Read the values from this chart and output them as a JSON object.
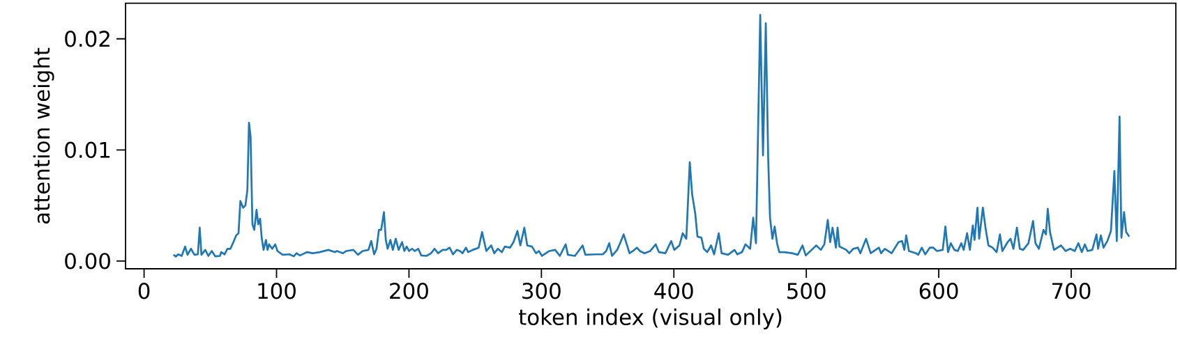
{
  "chart_data": {
    "type": "line",
    "xlabel": "token index (visual only)",
    "ylabel": "attention weight",
    "color": "#1f77b4",
    "xlim": [
      -14,
      779
    ],
    "ylim": [
      -0.0007,
      0.0232
    ],
    "xticks": [
      0,
      100,
      200,
      300,
      400,
      500,
      600,
      700
    ],
    "yticks": [
      {
        "value": 0,
        "label": "0.00"
      },
      {
        "value": 0.01,
        "label": "0.01"
      },
      {
        "value": 0.02,
        "label": "0.02"
      }
    ],
    "x": [
      22.2,
      24,
      25.7,
      28.4,
      31,
      32.8,
      35.4,
      38,
      40.6,
      42,
      43.3,
      46.2,
      48.5,
      51.1,
      53.8,
      57.3,
      58.2,
      60.8,
      62.9,
      65.2,
      67.8,
      69.5,
      71.3,
      72.7,
      74.8,
      76.5,
      78,
      79.2,
      80.4,
      81.8,
      83.2,
      84.9,
      86.2,
      87.6,
      88.8,
      90.2,
      92,
      93.2,
      94.4,
      96.7,
      99,
      100.7,
      104.6,
      109.8,
      113,
      115.1,
      117.7,
      123,
      127.3,
      132.6,
      139.1,
      144,
      145.7,
      150.1,
      152.7,
      158,
      161.5,
      165,
      169.4,
      171.5,
      173.7,
      175.5,
      177.3,
      179,
      181.1,
      182.5,
      183.9,
      186,
      187.8,
      190,
      192.2,
      194.8,
      196.5,
      198.3,
      200,
      202.3,
      204.4,
      207,
      209.3,
      213.2,
      216.7,
      219.3,
      222,
      225.4,
      228.1,
      230.7,
      233.3,
      236,
      238.6,
      240.4,
      243,
      244.7,
      248.2,
      252.6,
      255.2,
      258.4,
      262.1,
      264.4,
      267.1,
      270.1,
      272.4,
      276.3,
      278.9,
      281.9,
      284.1,
      287.1,
      289.3,
      292.9,
      295.9,
      298.1,
      300.4,
      306,
      310.4,
      313.9,
      318.3,
      320,
      325.3,
      331.1,
      333.2,
      341,
      346.3,
      348.9,
      351.2,
      353.3,
      357.2,
      359.4,
      362.1,
      364.7,
      366.5,
      369.1,
      372.1,
      374.3,
      377.8,
      382.2,
      386.3,
      388.7,
      393.6,
      398,
      400.3,
      404.2,
      406.7,
      409.4,
      412,
      413.8,
      416.1,
      417.8,
      420.8,
      422.6,
      425.2,
      428.1,
      430.4,
      433.9,
      436,
      440.9,
      445.8,
      447.9,
      451.4,
      454.1,
      457.6,
      459.9,
      462,
      462.9,
      465.2,
      467.3,
      469.4,
      471.2,
      472.6,
      474.4,
      476.1,
      477.9,
      479.6,
      483.2,
      489.2,
      493.6,
      497.1,
      499.6,
      504,
      507.5,
      511,
      513.6,
      516.2,
      518,
      519.8,
      522.4,
      523.6,
      525,
      530.2,
      532.4,
      535.5,
      539,
      540.8,
      545.1,
      548.6,
      554.8,
      556.5,
      559.2,
      564.4,
      569.6,
      572.3,
      574,
      575.4,
      577.5,
      582.8,
      584.5,
      587.2,
      589.8,
      593.2,
      595.9,
      598.6,
      603,
      605,
      607,
      609.1,
      611.8,
      614.4,
      617,
      618.8,
      621.4,
      623.5,
      625.7,
      627,
      629.2,
      630.5,
      633.3,
      635.4,
      637.5,
      640.6,
      643.7,
      646.2,
      648,
      652,
      654.2,
      656.4,
      659,
      661.2,
      663.7,
      667.7,
      671.2,
      673,
      675.6,
      679.1,
      680.9,
      682.3,
      684,
      687,
      692.3,
      695.7,
      699.2,
      702.7,
      705.4,
      708,
      710.3,
      712.4,
      715.9,
      719.1,
      720.3,
      722.4,
      724.4,
      727.3,
      730,
      732.6,
      734.4,
      736.5,
      737.9,
      739.9,
      741.5,
      743.8
    ],
    "values": [
      0.00056,
      0.0004,
      0.0006,
      0.00046,
      0.0013,
      0.00056,
      0.0011,
      0.00056,
      0.0006,
      0.003,
      0.00056,
      0.001,
      0.00046,
      0.0009,
      0.00042,
      0.00046,
      0.0008,
      0.0006,
      0.0011,
      0.0011,
      0.0018,
      0.0023,
      0.0025,
      0.0054,
      0.0048,
      0.005,
      0.0064,
      0.01245,
      0.0112,
      0.0033,
      0.0028,
      0.0046,
      0.0033,
      0.0038,
      0.0021,
      0.001,
      0.0019,
      0.001,
      0.0015,
      0.0011,
      0.0015,
      0.0009,
      0.00056,
      0.0006,
      0.00042,
      0.0007,
      0.0005,
      0.0008,
      0.0007,
      0.0008,
      0.001,
      0.0008,
      0.0009,
      0.0007,
      0.0009,
      0.001,
      0.00056,
      0.0009,
      0.001,
      0.0018,
      0.0006,
      0.0011,
      0.0028,
      0.0028,
      0.0044,
      0.0019,
      0.0011,
      0.0019,
      0.001,
      0.002,
      0.001,
      0.0017,
      0.0009,
      0.0013,
      0.0009,
      0.0011,
      0.0009,
      0.0011,
      0.0005,
      0.00046,
      0.0007,
      0.0011,
      0.0007,
      0.001,
      0.001,
      0.0012,
      0.0006,
      0.001,
      0.0009,
      0.0007,
      0.0012,
      0.0008,
      0.001,
      0.0012,
      0.0026,
      0.0009,
      0.0014,
      0.0007,
      0.0011,
      0.0008,
      0.0013,
      0.0012,
      0.0017,
      0.0027,
      0.0014,
      0.003,
      0.0014,
      0.0013,
      0.0007,
      0.0009,
      0.00046,
      0.0009,
      0.001,
      0.00046,
      0.0015,
      0.00056,
      0.00046,
      0.0014,
      0.00056,
      0.0006,
      0.0006,
      0.0009,
      0.0016,
      0.00046,
      0.001,
      0.0016,
      0.0024,
      0.0014,
      0.0007,
      0.0009,
      0.0012,
      0.0009,
      0.0007,
      0.0009,
      0.0015,
      0.0008,
      0.0007,
      0.0018,
      0.001,
      0.0014,
      0.0025,
      0.002,
      0.0089,
      0.006,
      0.0043,
      0.0022,
      0.0021,
      0.0011,
      0.0008,
      0.0014,
      0.0006,
      0.0025,
      0.0007,
      0.00056,
      0.001,
      0.0006,
      0.0008,
      0.0015,
      0.0011,
      0.0039,
      0.0016,
      0.0073,
      0.02215,
      0.0095,
      0.0214,
      0.0093,
      0.0039,
      0.002,
      0.0031,
      0.0016,
      0.0008,
      0.0008,
      0.0007,
      0.00056,
      0.0014,
      0.0005,
      0.001,
      0.0014,
      0.001,
      0.0015,
      0.0037,
      0.0017,
      0.003,
      0.0012,
      0.003,
      0.0013,
      0.001,
      0.0007,
      0.0011,
      0.0012,
      0.0007,
      0.002,
      0.0007,
      0.0012,
      0.0007,
      0.0011,
      0.0007,
      0.0017,
      0.0018,
      0.001,
      0.0023,
      0.0009,
      0.0007,
      0.00056,
      0.0012,
      0.0006,
      0.0012,
      0.0012,
      0.0009,
      0.001,
      0.0031,
      0.0008,
      0.0016,
      0.001,
      0.0009,
      0.0016,
      0.001,
      0.0025,
      0.001,
      0.0032,
      0.0019,
      0.0048,
      0.002,
      0.0048,
      0.0029,
      0.0014,
      0.0012,
      0.0008,
      0.0024,
      0.0009,
      0.0017,
      0.002,
      0.0011,
      0.003,
      0.0011,
      0.001,
      0.0016,
      0.0036,
      0.0016,
      0.0011,
      0.0028,
      0.0024,
      0.0047,
      0.0026,
      0.001,
      0.0014,
      0.0009,
      0.0011,
      0.0009,
      0.0016,
      0.0008,
      0.0015,
      0.0009,
      0.001,
      0.0024,
      0.0011,
      0.0023,
      0.0012,
      0.0018,
      0.0027,
      0.0081,
      0.0018,
      0.013,
      0.0021,
      0.0044,
      0.0026,
      0.0022
    ]
  }
}
